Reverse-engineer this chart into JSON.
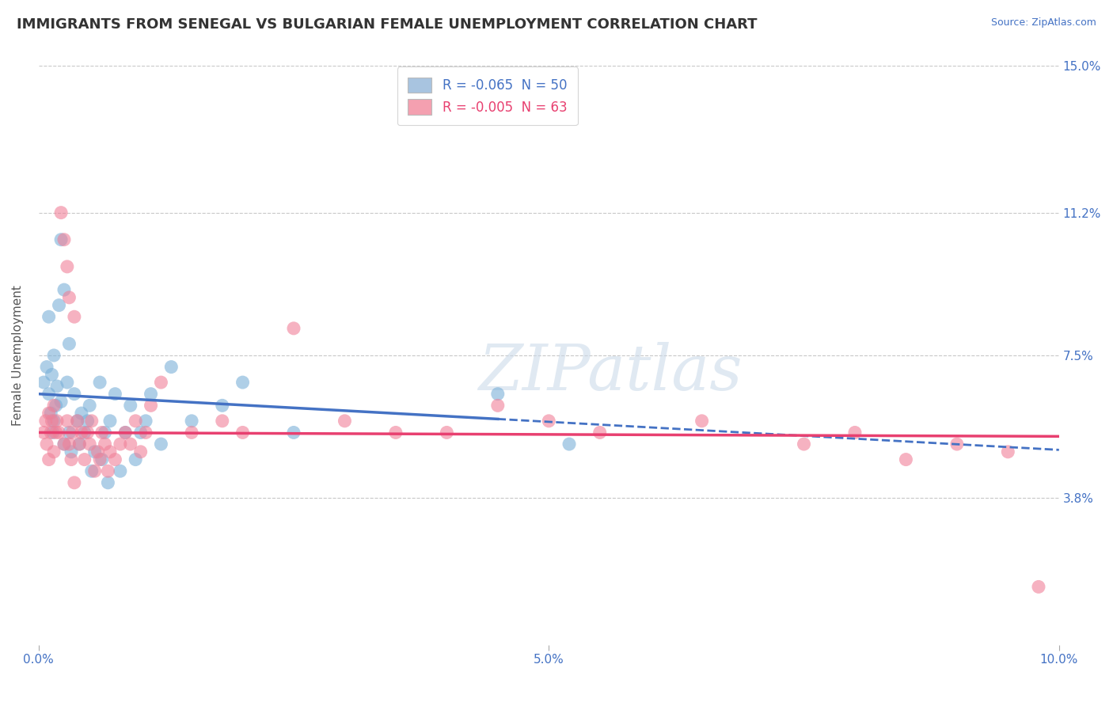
{
  "title": "IMMIGRANTS FROM SENEGAL VS BULGARIAN FEMALE UNEMPLOYMENT CORRELATION CHART",
  "source_text": "Source: ZipAtlas.com",
  "ylabel": "Female Unemployment",
  "xlim": [
    0.0,
    10.0
  ],
  "ylim": [
    0.0,
    15.0
  ],
  "ytick_positions": [
    3.8,
    7.5,
    11.2,
    15.0
  ],
  "ytick_labels": [
    "3.8%",
    "7.5%",
    "11.2%",
    "15.0%"
  ],
  "grid_color": "#c8c8c8",
  "background_color": "#ffffff",
  "watermark": "ZIPatlas",
  "legend": {
    "series1_label": "R = -0.065  N = 50",
    "series2_label": "R = -0.005  N = 63",
    "series1_color": "#a8c4e0",
    "series2_color": "#f4a0b0"
  },
  "blue_scatter_x": [
    0.05,
    0.08,
    0.1,
    0.1,
    0.12,
    0.13,
    0.14,
    0.15,
    0.15,
    0.17,
    0.18,
    0.2,
    0.22,
    0.22,
    0.25,
    0.25,
    0.28,
    0.3,
    0.3,
    0.32,
    0.35,
    0.38,
    0.4,
    0.42,
    0.45,
    0.48,
    0.5,
    0.52,
    0.55,
    0.6,
    0.62,
    0.65,
    0.68,
    0.7,
    0.75,
    0.8,
    0.85,
    0.9,
    0.95,
    1.0,
    1.05,
    1.1,
    1.2,
    1.3,
    1.5,
    1.8,
    2.0,
    2.5,
    4.5,
    5.2
  ],
  "blue_scatter_y": [
    6.8,
    7.2,
    6.5,
    8.5,
    6.0,
    7.0,
    5.5,
    5.8,
    7.5,
    6.2,
    6.7,
    8.8,
    6.3,
    10.5,
    5.2,
    9.2,
    6.8,
    5.5,
    7.8,
    5.0,
    6.5,
    5.8,
    5.2,
    6.0,
    5.5,
    5.8,
    6.2,
    4.5,
    5.0,
    6.8,
    4.8,
    5.5,
    4.2,
    5.8,
    6.5,
    4.5,
    5.5,
    6.2,
    4.8,
    5.5,
    5.8,
    6.5,
    5.2,
    7.2,
    5.8,
    6.2,
    6.8,
    5.5,
    6.5,
    5.2
  ],
  "pink_scatter_x": [
    0.05,
    0.07,
    0.08,
    0.1,
    0.1,
    0.12,
    0.13,
    0.15,
    0.15,
    0.17,
    0.18,
    0.2,
    0.22,
    0.25,
    0.25,
    0.28,
    0.28,
    0.3,
    0.3,
    0.32,
    0.33,
    0.35,
    0.35,
    0.38,
    0.4,
    0.42,
    0.45,
    0.48,
    0.5,
    0.52,
    0.55,
    0.58,
    0.6,
    0.62,
    0.65,
    0.68,
    0.7,
    0.75,
    0.8,
    0.85,
    0.9,
    0.95,
    1.0,
    1.05,
    1.1,
    1.2,
    1.5,
    1.8,
    2.0,
    2.5,
    3.0,
    3.5,
    4.0,
    4.5,
    5.0,
    5.5,
    6.5,
    7.5,
    8.0,
    8.5,
    9.0,
    9.5,
    9.8
  ],
  "pink_scatter_y": [
    5.5,
    5.8,
    5.2,
    6.0,
    4.8,
    5.5,
    5.8,
    5.0,
    6.2,
    5.5,
    5.8,
    5.5,
    11.2,
    5.2,
    10.5,
    5.8,
    9.8,
    5.2,
    9.0,
    4.8,
    5.5,
    4.2,
    8.5,
    5.8,
    5.2,
    5.5,
    4.8,
    5.5,
    5.2,
    5.8,
    4.5,
    5.0,
    4.8,
    5.5,
    5.2,
    4.5,
    5.0,
    4.8,
    5.2,
    5.5,
    5.2,
    5.8,
    5.0,
    5.5,
    6.2,
    6.8,
    5.5,
    5.8,
    5.5,
    8.2,
    5.8,
    5.5,
    5.5,
    6.2,
    5.8,
    5.5,
    5.8,
    5.2,
    5.5,
    4.8,
    5.2,
    5.0,
    1.5
  ],
  "blue_line_x0": 0.0,
  "blue_line_x1": 4.5,
  "blue_line_y0": 6.5,
  "blue_line_y1": 5.85,
  "blue_dash_x0": 4.5,
  "blue_dash_x1": 10.0,
  "blue_dash_y0": 5.85,
  "blue_dash_y1": 5.05,
  "pink_line_x0": 0.0,
  "pink_line_x1": 10.0,
  "pink_line_y0": 5.5,
  "pink_line_y1": 5.4,
  "blue_color": "#7ab0d8",
  "pink_color": "#f08098",
  "blue_line_color": "#4472c4",
  "pink_line_color": "#e84070",
  "title_fontsize": 13,
  "axis_label_fontsize": 11,
  "tick_fontsize": 11,
  "legend_fontsize": 12
}
